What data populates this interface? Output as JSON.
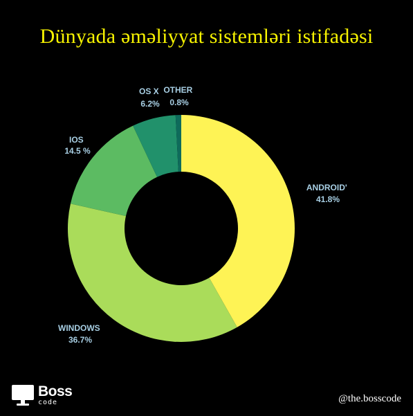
{
  "title": "Dünyada əməliyyat sistemləri istifadəsi",
  "chart_data": {
    "type": "pie",
    "donut": true,
    "title": "Dünyada əməliyyat sistemləri istifadəsi",
    "slices": [
      {
        "label": "ANDROID'",
        "value": 41.8,
        "value_text": "41.8%",
        "color": "#fef355"
      },
      {
        "label": "WINDOWS",
        "value": 36.7,
        "value_text": "36.7%",
        "color": "#aadc5a"
      },
      {
        "label": "IOS",
        "value": 14.5,
        "value_text": "14.5 %",
        "color": "#5cbb62"
      },
      {
        "label": "OS X",
        "value": 6.2,
        "value_text": "6.2%",
        "color": "#21916b"
      },
      {
        "label": "OTHER",
        "value": 0.8,
        "value_text": "0.8%",
        "color": "#0e6b5b"
      }
    ],
    "legend": "none"
  },
  "brand": {
    "name": "Boss",
    "sub": "code",
    "handle": "@the.bosscode"
  },
  "icons": {
    "brand_logo": "monitor-icon"
  }
}
